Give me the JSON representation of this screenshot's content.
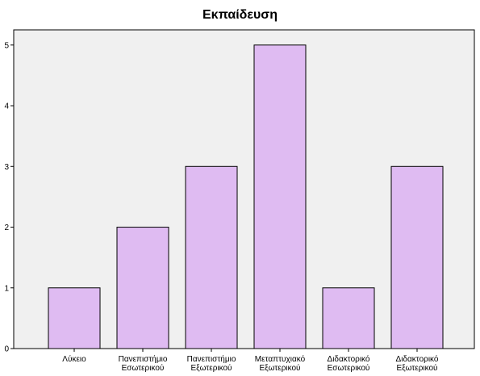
{
  "chart_data": {
    "type": "bar",
    "title": "Εκπαίδευση",
    "xlabel": "",
    "ylabel": "",
    "categories": [
      [
        "Λύκειο"
      ],
      [
        "Πανεπιστήμιο",
        "Εσωτερικού"
      ],
      [
        "Πανεπιστήμιο",
        "Εξωτερικού"
      ],
      [
        "Μεταπτυχιακό",
        "Εξωτερικού"
      ],
      [
        "Διδακτορικό",
        "Εσωτερικού"
      ],
      [
        "Διδακτορικό",
        "Εξωτερικού"
      ]
    ],
    "values": [
      1,
      2,
      3,
      5,
      1,
      3
    ],
    "ylim": [
      0,
      5.25
    ],
    "yticks": [
      0,
      1,
      2,
      3,
      4,
      5
    ],
    "grid": false,
    "legend": "none",
    "colors": {
      "bar_fill": "#dfbbf2",
      "bar_stroke": "#000000",
      "plot_background": "#f0f0f0",
      "axis": "#000000"
    }
  }
}
